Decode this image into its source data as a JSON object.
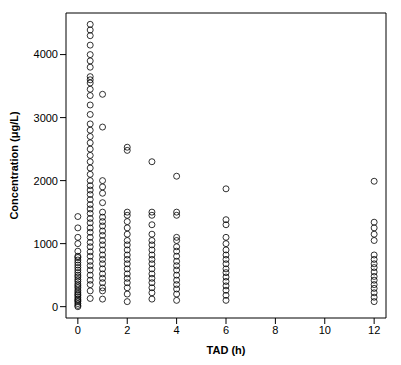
{
  "chart_data": {
    "type": "scatter",
    "x_label": "TAD (h)",
    "y_label": "Concentration (μg/L)",
    "color": "#000000",
    "marker": "circle-open",
    "grid": false,
    "xlim": [
      -0.48,
      12.48
    ],
    "xticks": [
      0,
      2,
      4,
      6,
      8,
      10,
      12
    ],
    "ylim": [
      -180,
      4660
    ],
    "yticks": [
      0,
      1000,
      2000,
      3000,
      4000
    ],
    "x": [
      0,
      0,
      0,
      0,
      0,
      0,
      0,
      0,
      0,
      0,
      0,
      0,
      0,
      0,
      0,
      0,
      0,
      0,
      0,
      0,
      0,
      0,
      0,
      0,
      0,
      0,
      0,
      0,
      0,
      0,
      0,
      0.5,
      0.5,
      0.5,
      0.5,
      0.5,
      0.5,
      0.5,
      0.5,
      0.5,
      0.5,
      0.5,
      0.5,
      0.5,
      0.5,
      0.5,
      0.5,
      0.5,
      0.5,
      0.5,
      0.5,
      0.5,
      0.5,
      0.5,
      0.5,
      0.5,
      0.5,
      0.5,
      0.5,
      0.5,
      0.5,
      0.5,
      0.5,
      0.5,
      0.5,
      0.5,
      0.5,
      0.5,
      0.5,
      0.5,
      0.5,
      0.5,
      0.5,
      0.5,
      0.5,
      0.5,
      0.5,
      0.5,
      0.5,
      1,
      1,
      1,
      1,
      1,
      1,
      1,
      1,
      1,
      1,
      1,
      1,
      1,
      1,
      1,
      1,
      1,
      1,
      1,
      1,
      1,
      1,
      1,
      1,
      1,
      2,
      2,
      2,
      2,
      2,
      2,
      2,
      2,
      2,
      2,
      2,
      2,
      2,
      2,
      2,
      2,
      2,
      2,
      2,
      2,
      3,
      3,
      3,
      3,
      3,
      3,
      3,
      3,
      3,
      3,
      3,
      3,
      3,
      3,
      3,
      3,
      3,
      3,
      4,
      4,
      4,
      4,
      4,
      4,
      4,
      4,
      4,
      4,
      4,
      4,
      4,
      4,
      4,
      4,
      4,
      6,
      6,
      6,
      6,
      6,
      6,
      6,
      6,
      6,
      6,
      6,
      6,
      6,
      6,
      6,
      6,
      6,
      12,
      12,
      12,
      12,
      12,
      12,
      12,
      12,
      12,
      12,
      12,
      12,
      12,
      12,
      12,
      12,
      12
    ],
    "values": [
      0,
      20,
      50,
      80,
      100,
      120,
      150,
      180,
      200,
      230,
      260,
      300,
      330,
      360,
      400,
      430,
      470,
      500,
      540,
      580,
      620,
      660,
      700,
      740,
      780,
      800,
      880,
      1000,
      1100,
      1250,
      1430,
      130,
      250,
      350,
      420,
      500,
      580,
      650,
      720,
      800,
      870,
      950,
      1020,
      1100,
      1180,
      1250,
      1330,
      1400,
      1480,
      1550,
      1620,
      1700,
      1780,
      1850,
      1920,
      2000,
      2100,
      2200,
      2300,
      2400,
      2500,
      2600,
      2700,
      2800,
      2900,
      3050,
      3200,
      3350,
      3450,
      3550,
      3600,
      3650,
      3800,
      3900,
      4000,
      4150,
      4300,
      4390,
      4480,
      120,
      250,
      300,
      380,
      450,
      520,
      600,
      680,
      750,
      820,
      900,
      980,
      1050,
      1130,
      1200,
      1280,
      1350,
      1420,
      1500,
      1650,
      1800,
      1900,
      2000,
      2850,
      3370,
      80,
      200,
      300,
      380,
      450,
      520,
      600,
      680,
      750,
      820,
      900,
      980,
      1050,
      1150,
      1250,
      1350,
      1450,
      1500,
      2480,
      2530,
      120,
      220,
      300,
      380,
      450,
      520,
      600,
      680,
      750,
      820,
      900,
      980,
      1050,
      1150,
      1300,
      1450,
      1500,
      2300,
      100,
      200,
      280,
      350,
      420,
      500,
      580,
      650,
      720,
      800,
      880,
      950,
      1050,
      1100,
      1450,
      1500,
      2070,
      100,
      180,
      260,
      330,
      400,
      470,
      540,
      600,
      680,
      750,
      820,
      900,
      1000,
      1100,
      1300,
      1380,
      1870,
      80,
      150,
      220,
      290,
      350,
      420,
      480,
      550,
      620,
      680,
      750,
      820,
      1050,
      1150,
      1250,
      1340,
      1990
    ]
  }
}
